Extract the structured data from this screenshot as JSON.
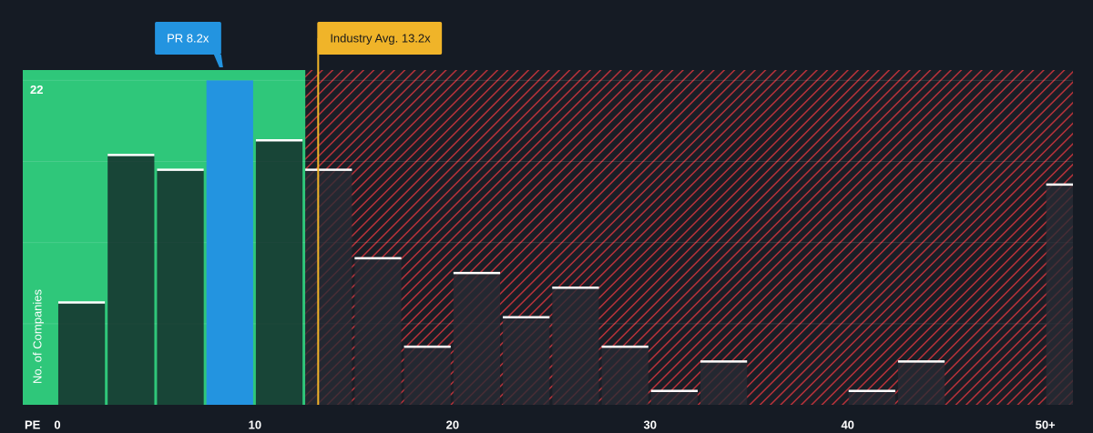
{
  "chart_data": {
    "type": "histogram",
    "x_label": "PE",
    "y_label": "No. of Companies",
    "bins": [
      0,
      2.5,
      5,
      7.5,
      10,
      12.5,
      15,
      17.5,
      20,
      22.5,
      25,
      27.5,
      30,
      32.5,
      35,
      37.5,
      40,
      42.5,
      45,
      47.5,
      50,
      52.5
    ],
    "values": [
      7,
      17,
      16,
      22,
      18,
      16,
      10,
      4,
      9,
      6,
      8,
      4,
      1,
      3,
      0,
      0,
      1,
      3,
      0,
      0,
      15
    ],
    "xlim": [
      -1.75,
      51.4
    ],
    "ylim": [
      0,
      22.7
    ],
    "xticks": [
      0,
      10,
      20,
      30,
      40,
      {
        "value": 50,
        "label": "50+"
      }
    ],
    "yticks": [
      22
    ],
    "y_grid": [
      5.5,
      11,
      16.5,
      22
    ],
    "company_label": "PR 8.2x",
    "company_value": 8.2,
    "industry_label": "Industry Avg. 13.2x",
    "industry_value": 13.2,
    "colors": {
      "fair": "#2fc77a",
      "expensive": "#c0343a",
      "company": "#2394e0",
      "industry": "#f0b429"
    }
  }
}
